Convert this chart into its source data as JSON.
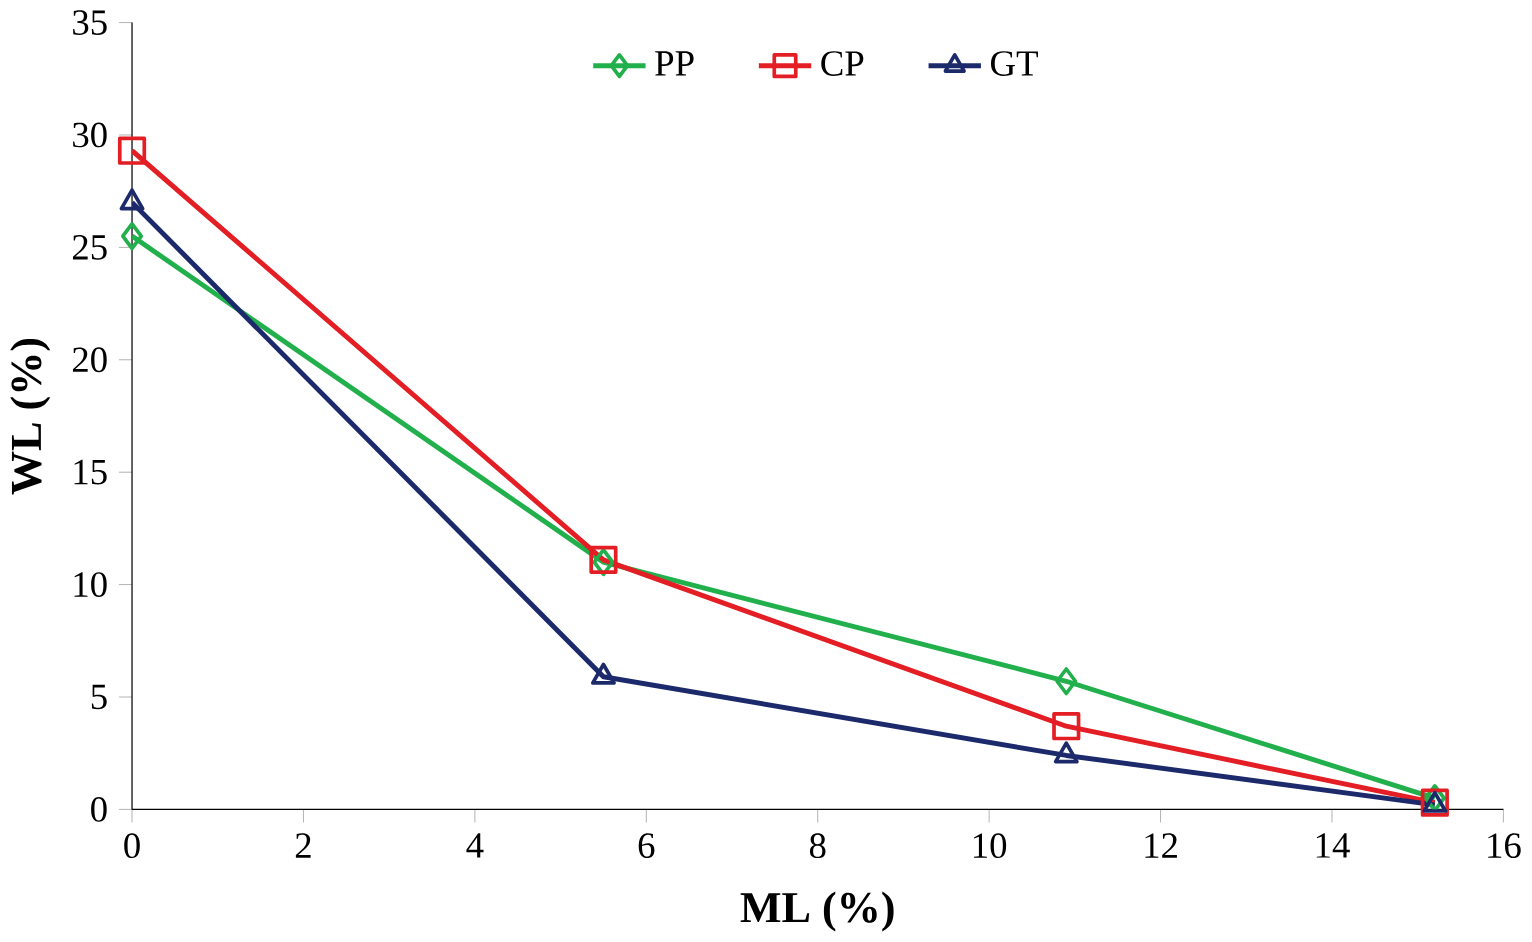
{
  "chart_data": {
    "type": "line",
    "xlabel": "ML (%)",
    "ylabel": "WL (%)",
    "xlim": [
      0,
      16
    ],
    "xticks": [
      0,
      2,
      4,
      6,
      8,
      10,
      12,
      14,
      16
    ],
    "ylim": [
      0,
      35
    ],
    "yticks": [
      0,
      5,
      10,
      15,
      20,
      25,
      30,
      35
    ],
    "grid": false,
    "legend": "top",
    "series": [
      {
        "name": "PP",
        "color": "#21b04b",
        "marker": "diamond",
        "x": [
          0,
          5.5,
          10.9,
          15.2
        ],
        "values": [
          25.5,
          11,
          5.7,
          0.5
        ]
      },
      {
        "name": "CP",
        "color": "#e31e24",
        "marker": "square",
        "x": [
          0,
          5.5,
          10.9,
          15.2
        ],
        "values": [
          29.3,
          11.1,
          3.7,
          0.3
        ]
      },
      {
        "name": "GT",
        "color": "#1c2a6b",
        "marker": "triangle",
        "x": [
          0,
          5.5,
          10.9,
          15.2
        ],
        "values": [
          27,
          5.9,
          2.4,
          0.2
        ]
      }
    ]
  }
}
